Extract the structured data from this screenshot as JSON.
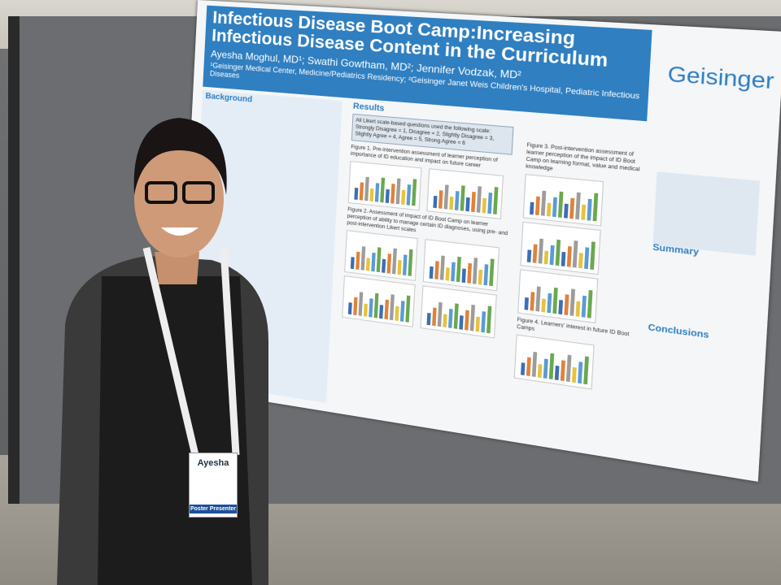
{
  "poster": {
    "title": "Infectious Disease Boot Camp:Increasing Infectious Disease Content in the Curriculum",
    "authors": "Ayesha Moghul, MD¹; Swathi Gowtham, MD²; Jennifer Vodzak, MD²",
    "affiliations": "¹Geisinger Medical Center, Medicine/Pediatrics Residency; ²Geisinger Janet Weis Children's Hospital, Pediatric Infectious Diseases",
    "logo": "Geisinger",
    "sections": {
      "background": "Background",
      "results": "Results",
      "summary": "Summary",
      "conclusions": "Conclusions"
    },
    "scale_note": "All Likert scale-based questions used the following scale: Strongly Disagree = 1, Disagree = 2, Slightly Disagree = 3, Slightly Agree = 4, Agree = 5, Strong Agree = 6",
    "figures": [
      "Figure 1. Pre-intervention assessment of learner perception of importance of ID education and impact on future career",
      "Figure 2. Assessment of impact of ID Boot Camp on learner perception of ability to manage certain ID diagnoses, using pre- and post-intervention Likert scales",
      "Figure 3. Post-intervention assessment of learner perception of the impact of ID Boot Camp on learning format, value and medical knowledge",
      "Figure 4. Learners' interest in future ID Boot Camps"
    ]
  },
  "badge": {
    "name": "Ayesha",
    "role": "Poster Presenter"
  }
}
